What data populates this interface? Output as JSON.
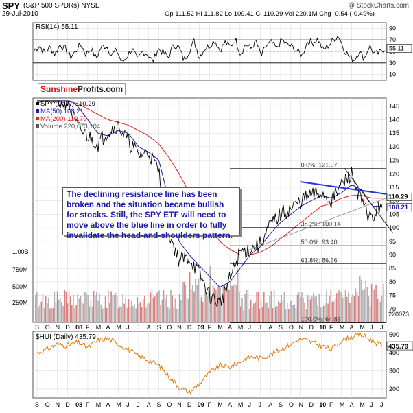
{
  "header": {
    "symbol": "SPY",
    "name": "(S&P 500 SPDRs) NYSE",
    "date": "29-Jul-2010",
    "ohlc": "Op 111.52  Hi 111.82  Lo 109.41  Cl 110.29  Vol 220.1M  Chg -0.54 (-0.49%)",
    "source": "@ StockCharts.com"
  },
  "logo": {
    "part1": "Sunshine",
    "part2": "Profits.com"
  },
  "annotation": "The declining resistance line has been broken and the situation became bullish for stocks. Still, the SPY ETF will need to move above the blue line in order to fully invalidate the head-and-shoulders pattern.",
  "colors": {
    "price": "#000000",
    "ma50": "#1a1aa6",
    "ma200": "#e0201b",
    "volume_up": "#b0b0b0",
    "volume_down": "#d98080",
    "hui": "#e07a10",
    "blue_line": "#2233dd",
    "grid": "#dcdcdc"
  },
  "chart_data": [
    {
      "type": "line",
      "title": "RSI(14) 55.11",
      "series": [
        {
          "name": "RSI(14)",
          "last": 55.11,
          "values": [
            52,
            60,
            48,
            58,
            45,
            62,
            55,
            40,
            50,
            63,
            45,
            55,
            38,
            58,
            60,
            44,
            52,
            30,
            42,
            55,
            35,
            50,
            45,
            32,
            55,
            48,
            40,
            62,
            58,
            35,
            50,
            68,
            40,
            55,
            60,
            70,
            52,
            66,
            58,
            72,
            45,
            63,
            55,
            68,
            42,
            60,
            66,
            55,
            70,
            62,
            58,
            50,
            44,
            68,
            65,
            72,
            52,
            60,
            70,
            78,
            55,
            42,
            35,
            50,
            38,
            60,
            45,
            48,
            55
          ]
        }
      ],
      "yticks": [
        10,
        30,
        50,
        70,
        90
      ],
      "ylim": [
        0,
        100
      ]
    },
    {
      "type": "line",
      "legend": [
        "SPY (Daily) 110.29",
        "MA(50) 108.21",
        "MA(200) 110.79",
        "Volume 220,073,104"
      ],
      "x": [
        "S",
        "O",
        "N",
        "D",
        "08",
        "F",
        "M",
        "A",
        "M",
        "J",
        "J",
        "A",
        "S",
        "O",
        "N",
        "D",
        "09",
        "F",
        "M",
        "A",
        "M",
        "J",
        "J",
        "A",
        "S",
        "O",
        "N",
        "D",
        "10",
        "F",
        "M",
        "A",
        "M",
        "J",
        "J"
      ],
      "series": [
        {
          "name": "SPY",
          "values": [
            152,
            154,
            146,
            147,
            137,
            134,
            131,
            136,
            138,
            132,
            127,
            128,
            121,
            98,
            88,
            89,
            83,
            75,
            72,
            81,
            91,
            92,
            94,
            101,
            105,
            107,
            110,
            112,
            113,
            110,
            116,
            120,
            109,
            103,
            110
          ]
        },
        {
          "name": "MA(50)",
          "values": [
            148,
            150,
            150,
            148,
            145,
            140,
            135,
            134,
            136,
            135,
            130,
            128,
            125,
            110,
            95,
            90,
            86,
            82,
            78,
            80,
            85,
            90,
            93,
            98,
            102,
            105,
            108,
            110,
            112,
            111,
            113,
            116,
            114,
            108,
            108
          ]
        },
        {
          "name": "MA(200)",
          "values": [
            146,
            148,
            148,
            147,
            146,
            144,
            142,
            140,
            139,
            138,
            136,
            134,
            131,
            126,
            120,
            113,
            107,
            100,
            95,
            92,
            90,
            90,
            91,
            93,
            96,
            99,
            102,
            105,
            108,
            109,
            111,
            112,
            112,
            111,
            111
          ]
        }
      ],
      "price_labels": [
        "110.29",
        "108.21",
        "110.79"
      ],
      "fibonacci": [
        {
          "label": "0.0%: 121.97",
          "value": 121.97
        },
        {
          "label": "38.2%: 100.14",
          "value": 100.14
        },
        {
          "label": "50.0%: 93.40",
          "value": 93.4
        },
        {
          "label": "61.8%: 86.66",
          "value": 86.66
        },
        {
          "label": "100.0%: 64.83",
          "value": 64.83
        }
      ],
      "yticks": [
        70,
        75,
        80,
        85,
        90,
        95,
        100,
        105,
        110,
        115,
        120,
        125,
        130,
        135,
        140,
        145
      ],
      "ylim": [
        65,
        148
      ],
      "volume_ticks": [
        "250M",
        "500M",
        "750M",
        "1.00B"
      ],
      "volume_last": "220073"
    },
    {
      "type": "line",
      "title": "$HUI (Daily) 435.79",
      "series": [
        {
          "name": "$HUI",
          "last": 435.79,
          "values": [
            400,
            420,
            450,
            440,
            460,
            430,
            470,
            480,
            450,
            420,
            380,
            360,
            330,
            270,
            210,
            180,
            230,
            290,
            330,
            320,
            350,
            380,
            370,
            390,
            420,
            450,
            480,
            460,
            440,
            420,
            470,
            490,
            500,
            470,
            440
          ]
        }
      ],
      "yticks": [
        200,
        300,
        400,
        500
      ],
      "ylim": [
        150,
        520
      ]
    }
  ],
  "x_axis": [
    "S",
    "O",
    "N",
    "D",
    "08",
    "F",
    "M",
    "A",
    "M",
    "J",
    "J",
    "A",
    "S",
    "O",
    "N",
    "D",
    "09",
    "F",
    "M",
    "A",
    "M",
    "J",
    "J",
    "A",
    "S",
    "O",
    "N",
    "D",
    "10",
    "F",
    "M",
    "A",
    "M",
    "J",
    "J"
  ]
}
